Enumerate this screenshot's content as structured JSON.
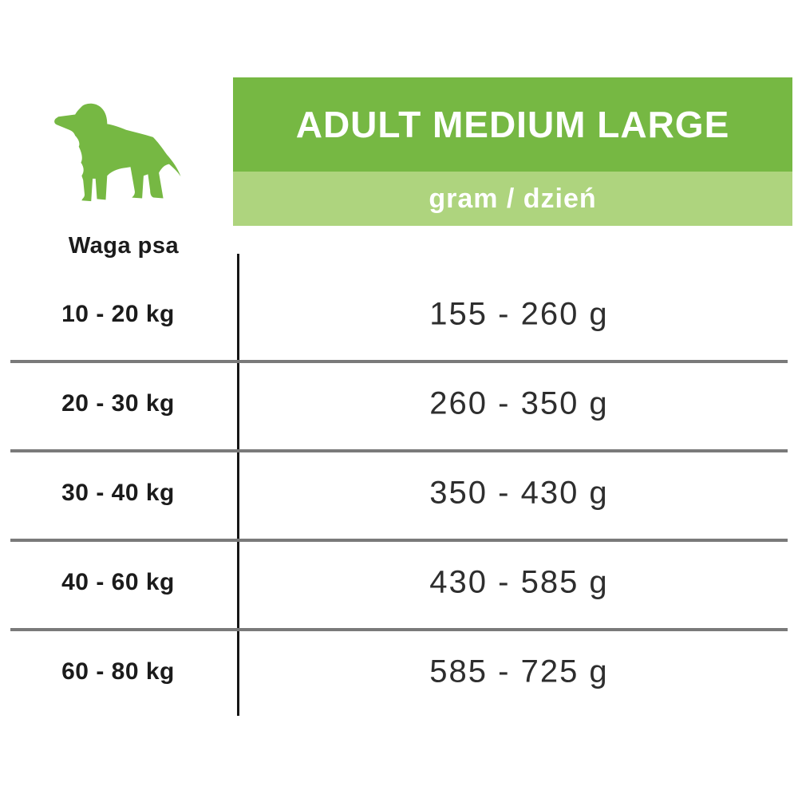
{
  "header": {
    "title": "ADULT MEDIUM LARGE",
    "subtitle": "gram / dzień"
  },
  "weight_column_header": "Waga psa",
  "rows": [
    {
      "weight": "10 - 20 kg",
      "grams": "155 - 260 g"
    },
    {
      "weight": "20 - 30 kg",
      "grams": "260 - 350 g"
    },
    {
      "weight": "30 - 40 kg",
      "grams": "350 - 430 g"
    },
    {
      "weight": "40 - 60 kg",
      "grams": "430 - 585 g"
    },
    {
      "weight": "60 - 80 kg",
      "grams": "585 - 725 g"
    }
  ],
  "icons": {
    "dog": "dog-silhouette-icon"
  },
  "colors": {
    "green": "#76b843",
    "light_green": "#aed47e",
    "line_gray": "#7a7a7a",
    "text_black": "#1b1b1b",
    "value_color": "#2e2e2e"
  },
  "chart_data": {
    "type": "table",
    "title": "ADULT MEDIUM LARGE",
    "subtitle": "gram / dzień",
    "columns": [
      "Waga psa",
      "gram / dzień"
    ],
    "rows": [
      [
        "10 - 20 kg",
        "155 - 260 g"
      ],
      [
        "20 - 30 kg",
        "260 - 350 g"
      ],
      [
        "30 - 40 kg",
        "350 - 430 g"
      ],
      [
        "40 - 60 kg",
        "430 - 585 g"
      ],
      [
        "60 - 80 kg",
        "585 - 725 g"
      ]
    ]
  }
}
